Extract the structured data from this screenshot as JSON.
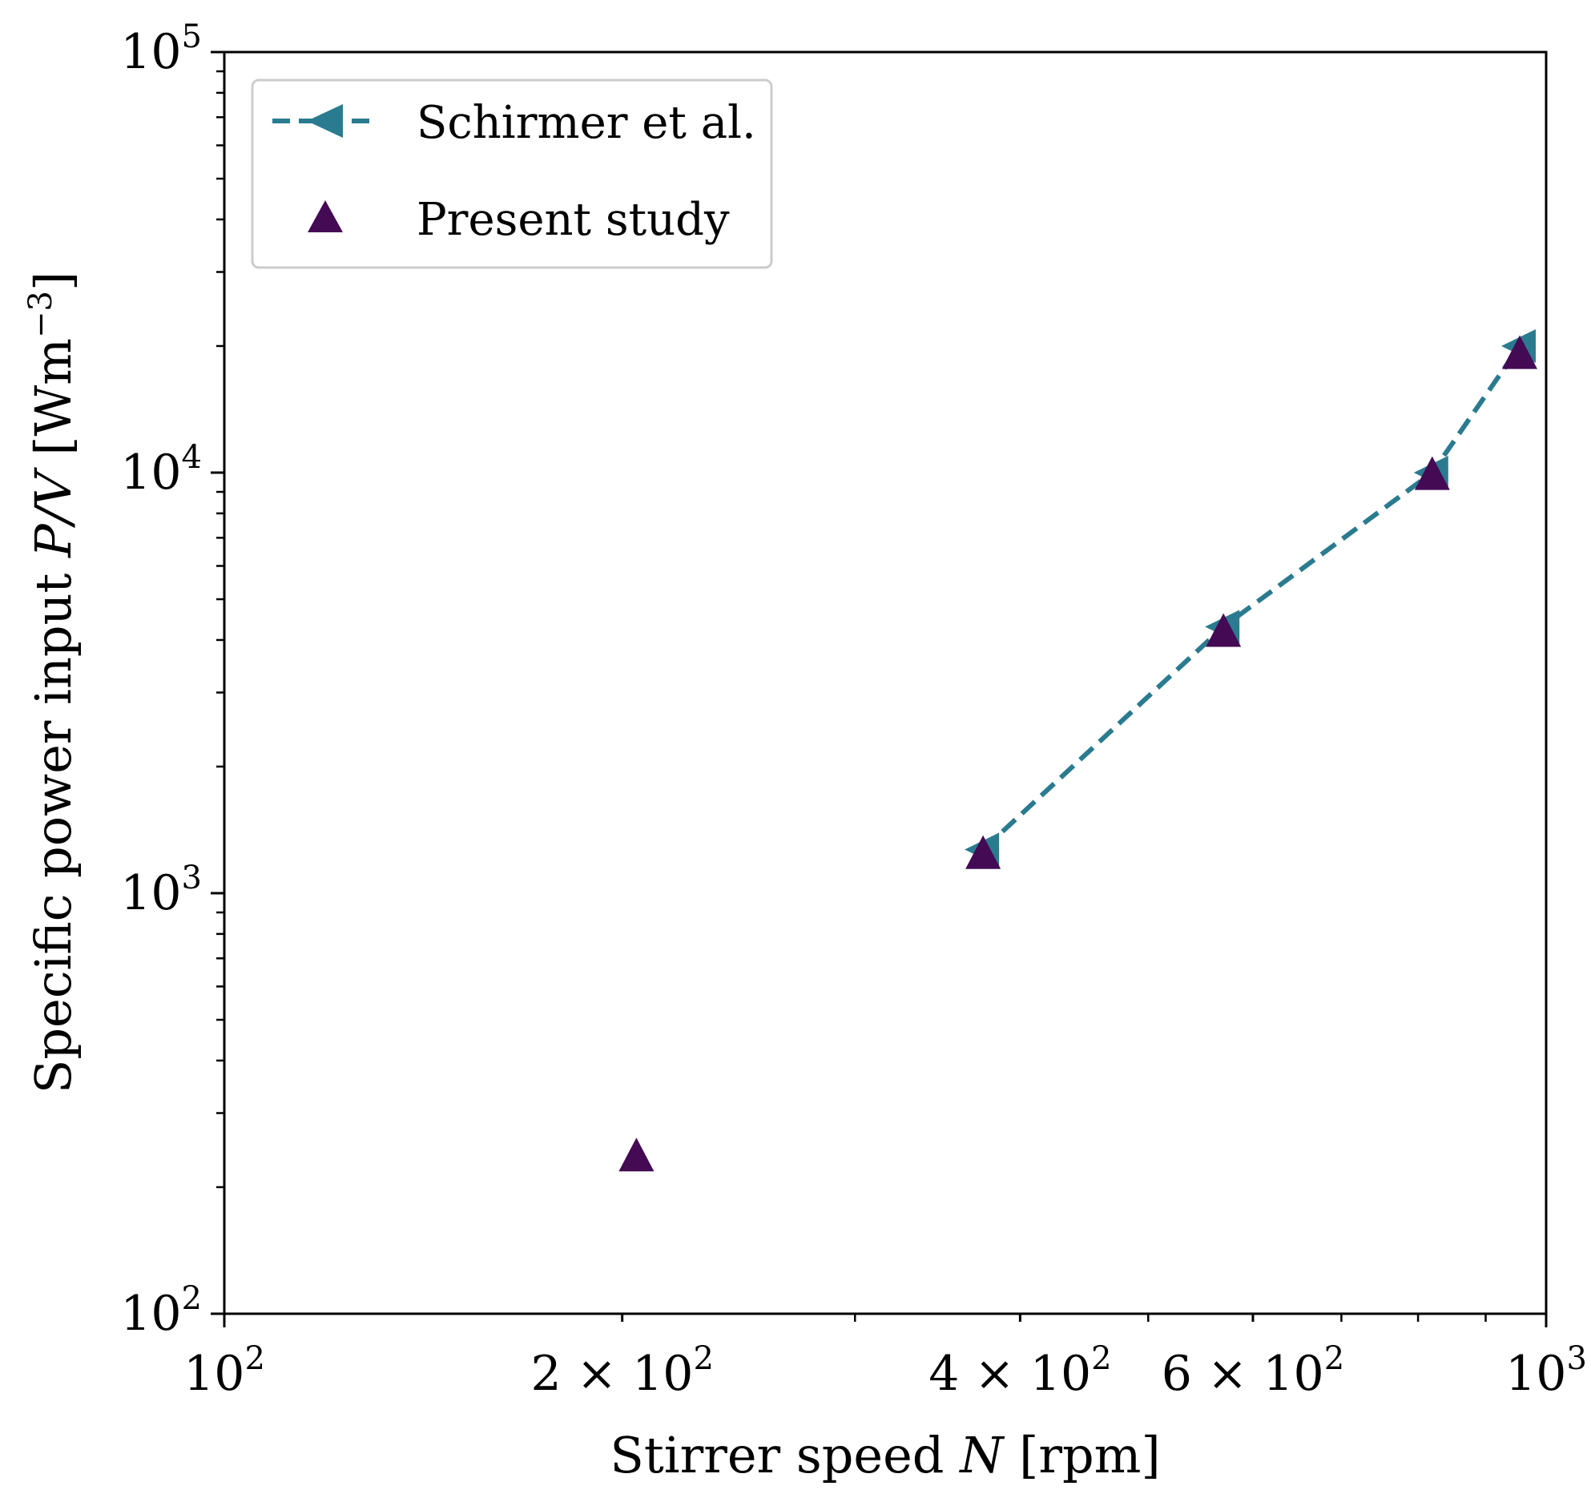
{
  "chart_data": {
    "type": "scatter",
    "x_scale": "log",
    "y_scale": "log",
    "xlim": [
      100,
      1000
    ],
    "ylim": [
      100,
      100000
    ],
    "xlabel": {
      "text": "Stirrer speed ",
      "var": "N",
      "unit": " [rpm]"
    },
    "ylabel": {
      "text": "Specific power input ",
      "var": "P/V",
      "unit": " [Wm",
      "unit_sup": "−3",
      "unit_close": "]"
    },
    "x_ticks": [
      {
        "value": 100,
        "mant": "10",
        "exp": "2"
      },
      {
        "value": 200,
        "mant": "2 × 10",
        "exp": "2"
      },
      {
        "value": 400,
        "mant": "4 × 10",
        "exp": "2"
      },
      {
        "value": 600,
        "mant": "6 × 10",
        "exp": "2"
      },
      {
        "value": 1000,
        "mant": "10",
        "exp": "3"
      }
    ],
    "y_ticks": [
      {
        "value": 100,
        "mant": "10",
        "exp": "2"
      },
      {
        "value": 1000,
        "mant": "10",
        "exp": "3"
      },
      {
        "value": 10000,
        "mant": "10",
        "exp": "4"
      },
      {
        "value": 100000,
        "mant": "10",
        "exp": "5"
      }
    ],
    "legend_position": "top-left",
    "series": [
      {
        "name": "Schirmer et al.",
        "style": "dashed-line-left-triangle",
        "color": "#2a7b8f",
        "x": [
          375,
          570,
          820,
          955
        ],
        "y": [
          1270,
          4300,
          10000,
          20000
        ]
      },
      {
        "name": "Present study",
        "style": "up-triangle",
        "color": "#440a54",
        "x": [
          205,
          375,
          570,
          820,
          955
        ],
        "y": [
          235,
          1230,
          4150,
          9800,
          19000
        ]
      }
    ]
  }
}
